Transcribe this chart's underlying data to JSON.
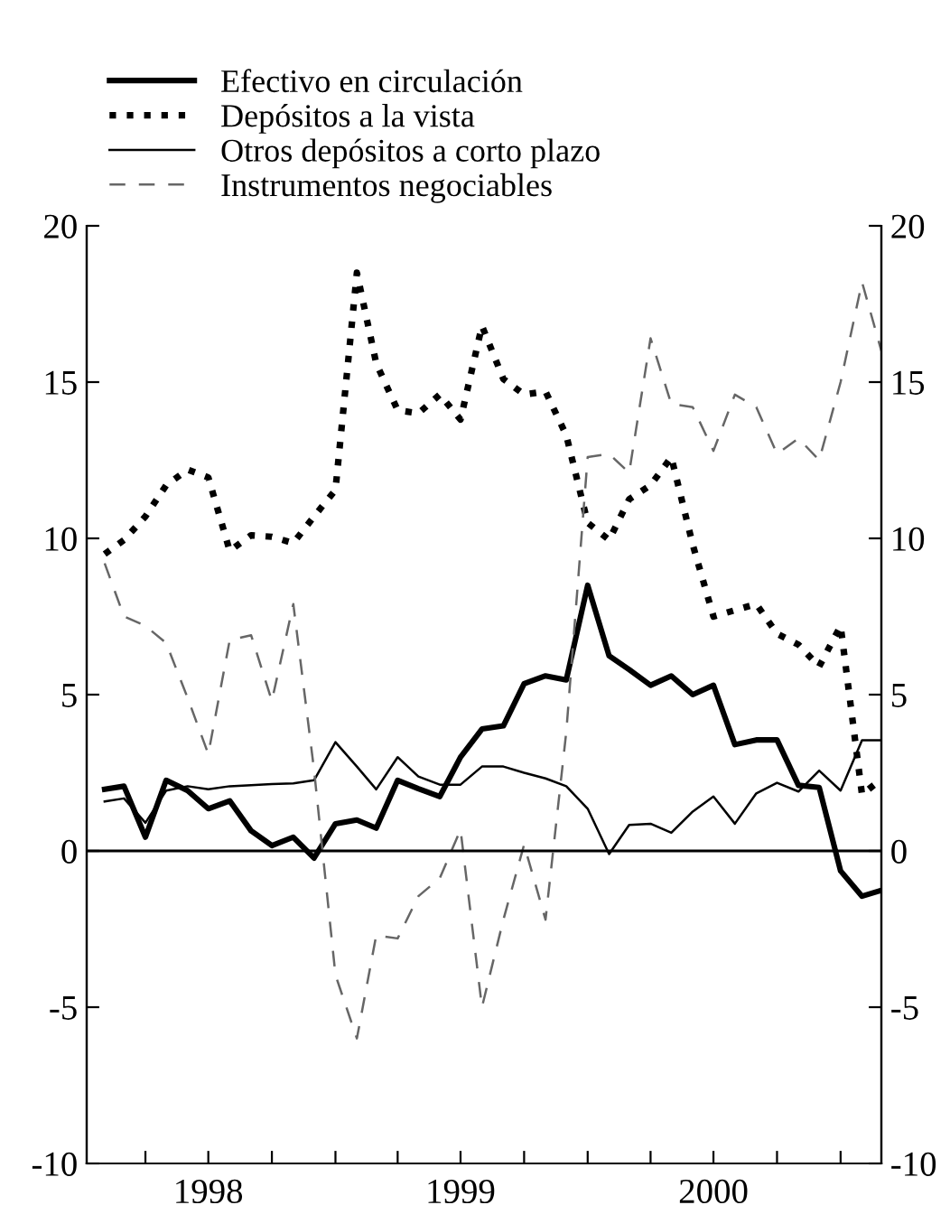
{
  "chart_data": {
    "type": "line",
    "x": [
      "1998-02",
      "1998-03",
      "1998-04",
      "1998-05",
      "1998-06",
      "1998-07",
      "1998-08",
      "1998-09",
      "1998-10",
      "1998-11",
      "1998-12",
      "1999-01",
      "1999-02",
      "1999-03",
      "1999-04",
      "1999-05",
      "1999-06",
      "1999-07",
      "1999-08",
      "1999-09",
      "1999-10",
      "1999-11",
      "1999-12",
      "2000-01",
      "2000-02",
      "2000-03",
      "2000-04",
      "2000-05",
      "2000-06",
      "2000-07",
      "2000-08",
      "2000-09",
      "2000-10",
      "2000-11",
      "2000-12",
      "2001-01",
      "2001-02",
      "2001-03"
    ],
    "series": [
      {
        "name": "Efectivo en circulación",
        "color": "#000000",
        "line_style": "solid",
        "values": [
          1.97,
          2.07,
          0.44,
          2.26,
          1.93,
          1.35,
          1.6,
          0.64,
          0.17,
          0.44,
          -0.23,
          0.87,
          0.99,
          0.73,
          2.26,
          1.99,
          1.74,
          3.0,
          3.9,
          4.0,
          5.35,
          5.6,
          5.47,
          8.5,
          6.24,
          5.8,
          5.3,
          5.6,
          5.0,
          5.3,
          3.4,
          3.55,
          3.55,
          2.1,
          2.03,
          -0.64,
          -1.45,
          -1.26
        ]
      },
      {
        "name": "Depósitos a la vista",
        "color": "#000000",
        "line_style": "dotted",
        "values": [
          9.5,
          9.95,
          10.7,
          11.7,
          12.2,
          11.95,
          9.6,
          10.1,
          10.05,
          9.85,
          10.7,
          11.55,
          18.5,
          15.6,
          14.1,
          14.0,
          14.6,
          13.8,
          16.8,
          15.1,
          14.6,
          14.7,
          13.3,
          10.5,
          9.95,
          11.25,
          11.7,
          12.6,
          9.8,
          7.5,
          7.7,
          7.9,
          6.95,
          6.6,
          5.9,
          7.2,
          1.8,
          2.3
        ]
      },
      {
        "name": "Otros depósitos a corto plazo",
        "color": "#000000",
        "line_style": "solid",
        "values": [
          1.58,
          1.68,
          0.9,
          1.93,
          2.07,
          1.97,
          2.07,
          2.1,
          2.14,
          2.16,
          2.26,
          3.48,
          2.7,
          1.97,
          3.0,
          2.38,
          2.12,
          2.12,
          2.7,
          2.7,
          2.5,
          2.32,
          2.07,
          1.35,
          -0.1,
          0.83,
          0.87,
          0.58,
          1.26,
          1.74,
          0.87,
          1.84,
          2.18,
          1.9,
          2.57,
          1.93,
          3.54,
          3.54
        ]
      },
      {
        "name": "Instrumentos negociables",
        "color": "#666666",
        "line_style": "dashed",
        "values": [
          9.2,
          7.5,
          7.2,
          6.65,
          4.9,
          3.1,
          6.75,
          6.9,
          4.8,
          7.9,
          2.6,
          -3.97,
          -6.0,
          -2.7,
          -2.8,
          -1.45,
          -0.87,
          0.68,
          -5.0,
          -2.2,
          0.2,
          -2.2,
          3.8,
          12.6,
          12.7,
          12.1,
          16.4,
          14.3,
          14.2,
          12.8,
          14.6,
          14.2,
          12.7,
          13.2,
          12.5,
          15.0,
          18.2,
          16.0
        ]
      }
    ],
    "xlim": [
      "1998-01-06",
      "2001-03-01"
    ],
    "xticks": [
      {
        "value": "1998-04-01",
        "label": null
      },
      {
        "value": "1998-07-01",
        "label": "1998"
      },
      {
        "value": "1998-10-01",
        "label": null
      },
      {
        "value": "1999-01-01",
        "label": null
      },
      {
        "value": "1999-04-01",
        "label": null
      },
      {
        "value": "1999-07-01",
        "label": "1999"
      },
      {
        "value": "1999-10-01",
        "label": null
      },
      {
        "value": "2000-01-01",
        "label": null
      },
      {
        "value": "2000-04-01",
        "label": null
      },
      {
        "value": "2000-07-01",
        "label": "2000"
      },
      {
        "value": "2000-10-01",
        "label": null
      },
      {
        "value": "2001-01-01",
        "label": null
      }
    ],
    "ylim": [
      -10,
      20
    ],
    "yticks": [
      -10,
      -5,
      0,
      5,
      10,
      15,
      20
    ],
    "y2lim": [
      -10,
      20
    ],
    "y2ticks": [
      -10,
      -5,
      0,
      5,
      10,
      15,
      20
    ],
    "ref_lines": [
      {
        "axis": "y",
        "value": 0,
        "color": "#000000"
      }
    ],
    "grid": false,
    "legend": "top left"
  }
}
